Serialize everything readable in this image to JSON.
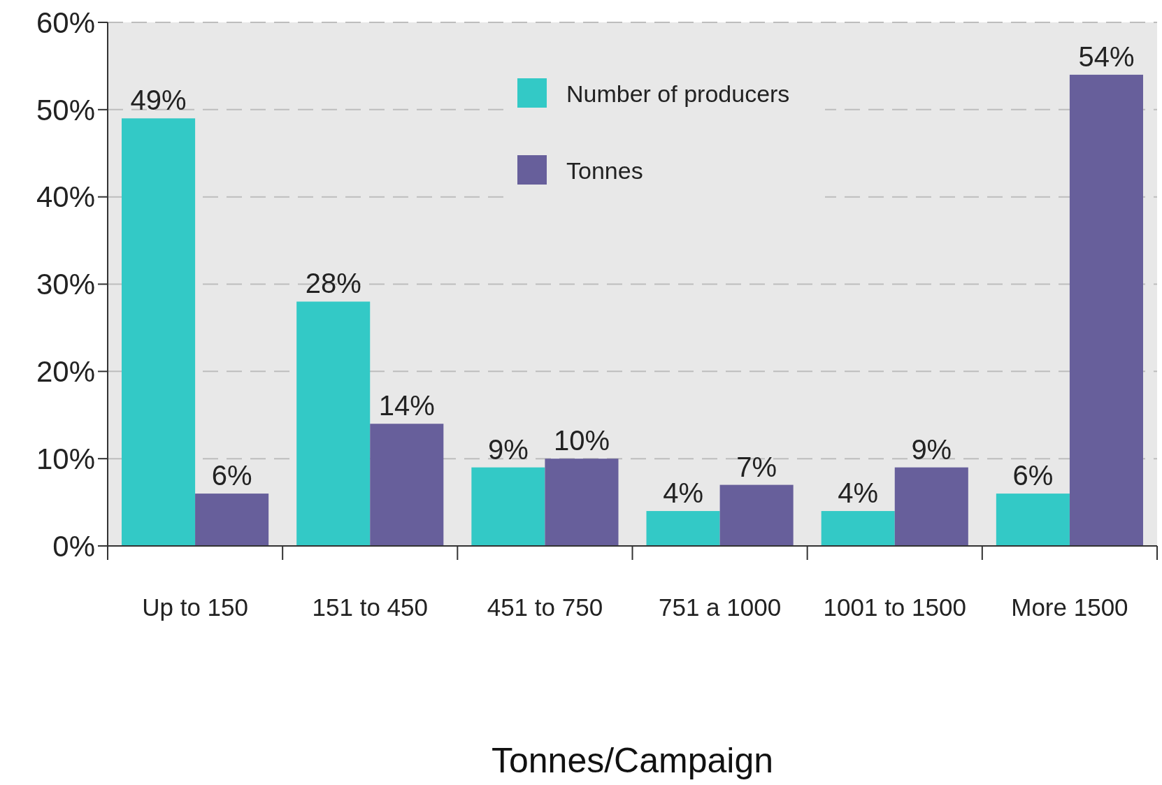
{
  "chart_data": {
    "type": "bar",
    "xlabel": "Tonnes/Campaign",
    "categories": [
      "Up to 150",
      "151 to 450",
      "451 to 750",
      "751 a 1000",
      "1001 to 1500",
      "More 1500"
    ],
    "series": [
      {
        "name": "Number of producers",
        "color": "#33c9c6",
        "values": [
          49,
          28,
          9,
          4,
          4,
          6
        ],
        "value_labels": [
          "49%",
          "28%",
          "9%",
          "4%",
          "4%",
          "6%"
        ]
      },
      {
        "name": "Tonnes",
        "color": "#675f9b",
        "values": [
          6,
          14,
          10,
          7,
          9,
          54
        ],
        "value_labels": [
          "6%",
          "14%",
          "10%",
          "7%",
          "9%",
          "54%"
        ]
      }
    ],
    "ylim": [
      0,
      60
    ],
    "yticks": [
      {
        "value": 0,
        "label": "0%"
      },
      {
        "value": 10,
        "label": "10%"
      },
      {
        "value": 20,
        "label": "20%"
      },
      {
        "value": 30,
        "label": "30%"
      },
      {
        "value": 40,
        "label": "40%"
      },
      {
        "value": 50,
        "label": "50%"
      },
      {
        "value": 60,
        "label": "60%"
      }
    ],
    "grid": "y",
    "legend": "top"
  }
}
